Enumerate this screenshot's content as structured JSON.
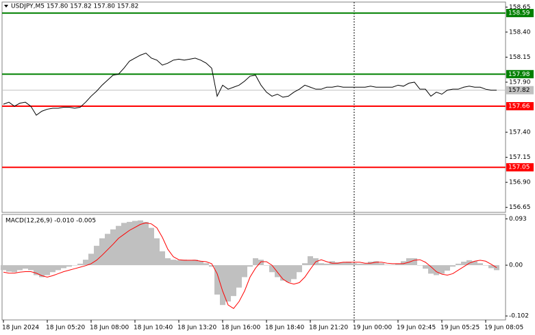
{
  "chart_data": [
    {
      "type": "line",
      "title": "USDJPY,M5  157.80 157.82 157.80 157.82",
      "color": "#000000",
      "categories": [
        "18 Jun 2024",
        null,
        null,
        null,
        null,
        null,
        null,
        null,
        "18 Jun 05:20",
        null,
        null,
        null,
        null,
        null,
        null,
        null,
        "18 Jun 08:00",
        null,
        null,
        null,
        null,
        null,
        null,
        null,
        "18 Jun 10:40",
        null,
        null,
        null,
        null,
        null,
        null,
        null,
        "18 Jun 13:20",
        null,
        null,
        null,
        null,
        null,
        null,
        null,
        "18 Jun 16:00",
        null,
        null,
        null,
        null,
        null,
        null,
        null,
        "18 Jun 18:40",
        null,
        null,
        null,
        null,
        null,
        null,
        null,
        "18 Jun 21:20",
        null,
        null,
        null,
        null,
        null,
        null,
        null,
        "19 Jun 00:00",
        null,
        null,
        null,
        null,
        null,
        null,
        null,
        "19 Jun 02:45",
        null,
        null,
        null,
        null,
        null,
        null,
        null,
        "19 Jun 05:25",
        null,
        null,
        null,
        null,
        null,
        null,
        null,
        "19 Jun 08:05",
        null,
        null
      ],
      "values": [
        157.68,
        157.7,
        157.66,
        157.69,
        157.7,
        157.66,
        157.57,
        157.61,
        157.63,
        157.64,
        157.64,
        157.65,
        157.65,
        157.64,
        157.65,
        157.7,
        157.76,
        157.81,
        157.87,
        157.92,
        157.97,
        157.98,
        158.04,
        158.11,
        158.14,
        158.17,
        158.19,
        158.14,
        158.12,
        158.07,
        158.09,
        158.12,
        158.13,
        158.12,
        158.13,
        158.14,
        158.12,
        158.09,
        158.04,
        157.76,
        157.87,
        157.83,
        157.85,
        157.87,
        157.91,
        157.96,
        157.97,
        157.87,
        157.8,
        157.76,
        157.78,
        157.75,
        157.76,
        157.8,
        157.83,
        157.87,
        157.85,
        157.83,
        157.83,
        157.85,
        157.85,
        157.86,
        157.85,
        157.85,
        157.85,
        157.85,
        157.85,
        157.86,
        157.85,
        157.85,
        157.85,
        157.85,
        157.87,
        157.86,
        157.89,
        157.9,
        157.83,
        157.83,
        157.76,
        157.8,
        157.78,
        157.82,
        157.83,
        157.83,
        157.85,
        157.86,
        157.85,
        157.85,
        157.83,
        157.82,
        157.82
      ],
      "ylim": [
        156.6,
        158.7
      ],
      "yticks": [
        158.65,
        {
          "value": 158.4,
          "label": "158.40"
        },
        158.15,
        {
          "value": 157.9,
          "label": "157.90"
        },
        {
          "value": 157.4,
          "label": "157.40"
        },
        157.15,
        {
          "value": 156.9,
          "label": "156.90"
        },
        156.65
      ],
      "levels": [
        {
          "value": 158.59,
          "color": "#008000"
        },
        {
          "value": 157.98,
          "color": "#008000"
        },
        {
          "value": 157.66,
          "color": "#ff0000"
        },
        {
          "value": 157.05,
          "color": "#ff0000"
        }
      ],
      "last_price_color": "#c0c0c0"
    },
    {
      "type": "bar",
      "title": "MACD(12,26,9) -0.010 -0.005",
      "series": [
        {
          "color": "#c0c0c0",
          "values": [
            -0.01,
            -0.013,
            -0.014,
            -0.01,
            -0.007,
            -0.01,
            -0.02,
            -0.024,
            -0.02,
            -0.014,
            -0.01,
            -0.006,
            -0.003,
            0,
            0.003,
            0.011,
            0.023,
            0.039,
            0.054,
            0.063,
            0.072,
            0.079,
            0.085,
            0.087,
            0.089,
            0.09,
            0.087,
            0.075,
            0.054,
            0.028,
            0.014,
            0.011,
            0.01,
            0.011,
            0.01,
            0.011,
            0.008,
            0.004,
            -0.003,
            -0.059,
            -0.08,
            -0.073,
            -0.062,
            -0.045,
            -0.024,
            -0.003,
            0.014,
            0.011,
            0,
            -0.014,
            -0.024,
            -0.031,
            -0.034,
            -0.028,
            -0.014,
            0.004,
            0.018,
            0.014,
            0.004,
            0.003,
            0.008,
            0.006,
            0.006,
            0.007,
            0.004,
            0.003,
            0.003,
            0.007,
            0.008,
            0.004,
            0.001,
            0.001,
            0.003,
            0.008,
            0.014,
            0.014,
            0,
            -0.007,
            -0.017,
            -0.02,
            -0.017,
            -0.011,
            -0.003,
            0.003,
            0.007,
            0.01,
            0.008,
            0.004,
            0,
            -0.006,
            -0.01
          ]
        },
        {
          "type": "line",
          "color": "#ff0000",
          "values": [
            -0.014,
            -0.016,
            -0.016,
            -0.014,
            -0.013,
            -0.013,
            -0.016,
            -0.021,
            -0.024,
            -0.021,
            -0.017,
            -0.013,
            -0.01,
            -0.007,
            -0.004,
            -0.001,
            0.003,
            0.01,
            0.02,
            0.031,
            0.042,
            0.054,
            0.062,
            0.07,
            0.076,
            0.082,
            0.085,
            0.083,
            0.075,
            0.056,
            0.032,
            0.017,
            0.011,
            0.01,
            0.01,
            0.01,
            0.008,
            0.007,
            0.003,
            -0.017,
            -0.052,
            -0.08,
            -0.087,
            -0.073,
            -0.052,
            -0.024,
            -0.006,
            0.007,
            0.007,
            0,
            -0.014,
            -0.028,
            -0.035,
            -0.038,
            -0.035,
            -0.024,
            -0.008,
            0.007,
            0.011,
            0.007,
            0.004,
            0.004,
            0.006,
            0.006,
            0.006,
            0.006,
            0.004,
            0.004,
            0.006,
            0.006,
            0.004,
            0.003,
            0.003,
            0.003,
            0.006,
            0.01,
            0.011,
            0.006,
            -0.003,
            -0.013,
            -0.018,
            -0.02,
            -0.017,
            -0.01,
            -0.003,
            0.004,
            0.008,
            0.01,
            0.008,
            0.002,
            -0.005
          ]
        }
      ],
      "ylim": [
        -0.11,
        0.102
      ],
      "yticks": [
        0.093,
        {
          "value": 0,
          "label": "0.00"
        },
        -0.102
      ]
    }
  ]
}
